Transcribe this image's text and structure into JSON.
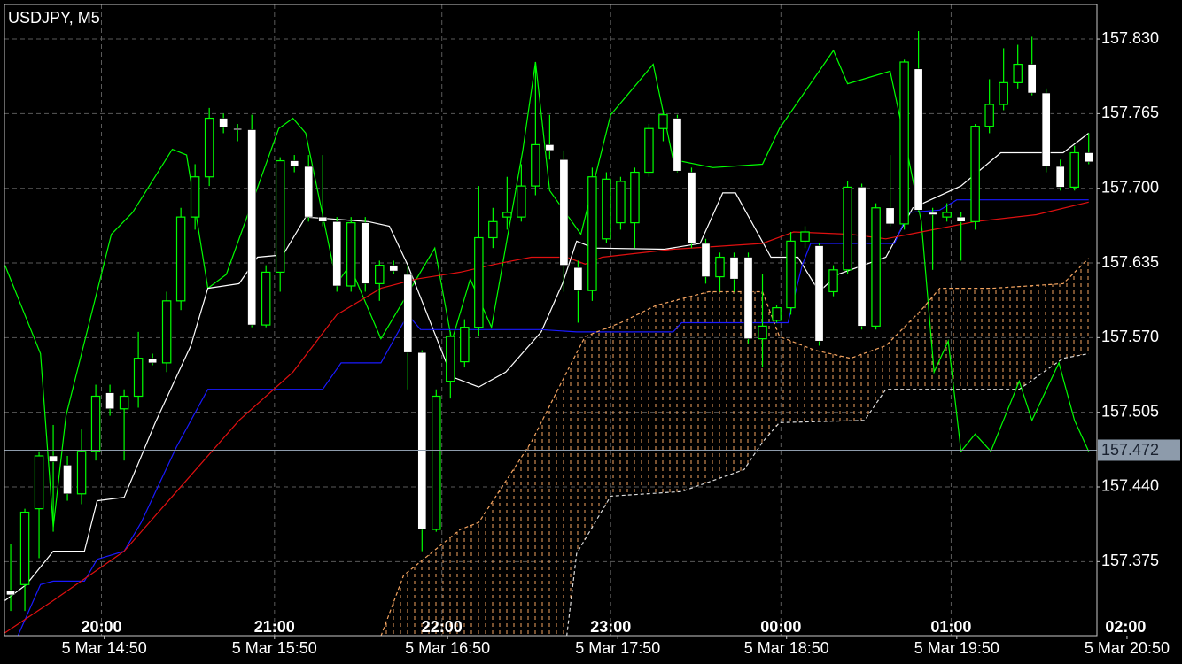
{
  "chart_data": {
    "type": "candlestick",
    "title": "USDJPY, M5",
    "open": [
      157.35,
      157.355,
      157.421,
      157.467,
      157.459,
      157.434,
      157.471,
      157.522,
      157.508,
      157.519,
      157.552,
      157.548,
      157.602,
      157.675,
      157.71,
      157.761,
      157.752,
      157.751,
      157.581,
      157.627,
      157.724,
      157.719,
      157.675,
      157.671,
      157.615,
      157.67,
      157.617,
      157.633,
      157.625,
      157.557,
      157.403,
      157.532,
      157.549,
      157.579,
      157.657,
      157.675,
      157.675,
      157.702,
      157.738,
      157.725,
      157.631,
      157.611,
      157.656,
      157.67,
      157.67,
      157.714,
      157.752,
      157.761,
      157.714,
      157.652,
      157.623,
      157.64,
      157.64,
      157.569,
      157.585,
      157.596,
      157.654,
      157.65,
      157.61,
      157.629,
      157.701,
      157.58,
      157.683,
      157.669,
      157.804,
      157.679,
      157.675,
      157.675,
      157.671,
      157.754,
      157.773,
      157.792,
      157.808,
      157.783,
      157.719,
      157.701,
      157.731
    ],
    "high": [
      157.39,
      157.421,
      157.471,
      157.494,
      157.467,
      157.49,
      157.529,
      157.529,
      157.525,
      157.575,
      157.556,
      157.61,
      157.683,
      157.721,
      157.77,
      157.765,
      157.756,
      157.764,
      157.633,
      157.727,
      157.729,
      157.729,
      157.729,
      157.675,
      157.675,
      157.675,
      157.637,
      157.637,
      157.633,
      157.559,
      157.525,
      157.575,
      157.586,
      157.702,
      157.683,
      157.71,
      157.721,
      157.81,
      157.764,
      157.733,
      157.637,
      157.718,
      157.714,
      157.71,
      157.718,
      157.756,
      157.768,
      157.764,
      157.718,
      157.656,
      157.644,
      157.644,
      157.644,
      157.625,
      157.598,
      157.662,
      157.667,
      157.652,
      157.633,
      157.706,
      157.704,
      157.687,
      157.729,
      157.812,
      157.837,
      157.683,
      157.687,
      157.679,
      157.756,
      157.795,
      157.822,
      157.825,
      157.832,
      157.787,
      157.725,
      157.737,
      157.748
    ],
    "low": [
      157.332,
      157.332,
      157.378,
      157.401,
      157.428,
      157.425,
      157.463,
      157.502,
      157.463,
      157.509,
      157.546,
      157.54,
      157.594,
      157.664,
      157.702,
      157.748,
      157.741,
      157.579,
      157.579,
      157.61,
      157.714,
      157.671,
      157.667,
      157.61,
      157.61,
      157.61,
      157.602,
      157.625,
      157.525,
      157.384,
      157.401,
      157.517,
      157.544,
      157.571,
      157.648,
      157.664,
      157.671,
      157.694,
      157.725,
      157.61,
      157.583,
      157.602,
      157.652,
      157.664,
      157.648,
      157.71,
      157.741,
      157.714,
      157.648,
      157.617,
      157.61,
      157.61,
      157.565,
      157.544,
      157.583,
      157.59,
      157.648,
      157.563,
      157.606,
      157.625,
      157.577,
      157.577,
      157.667,
      157.664,
      157.679,
      157.629,
      157.671,
      157.637,
      157.664,
      157.748,
      157.768,
      157.787,
      157.781,
      157.714,
      157.698,
      157.698,
      157.721
    ],
    "close": [
      157.346,
      157.418,
      157.467,
      157.462,
      157.434,
      157.471,
      157.519,
      157.508,
      157.519,
      157.552,
      157.548,
      157.602,
      157.675,
      157.71,
      157.761,
      157.753,
      157.751,
      157.581,
      157.627,
      157.724,
      157.719,
      157.675,
      157.671,
      157.615,
      157.67,
      157.617,
      157.633,
      157.628,
      157.557,
      157.403,
      157.519,
      157.571,
      157.579,
      157.657,
      157.671,
      157.679,
      157.702,
      157.738,
      157.733,
      157.633,
      157.611,
      157.71,
      157.708,
      157.706,
      157.714,
      157.752,
      157.764,
      157.715,
      157.652,
      157.623,
      157.64,
      157.621,
      157.569,
      157.58,
      157.596,
      157.654,
      157.662,
      157.567,
      157.629,
      157.701,
      157.58,
      157.683,
      157.669,
      157.81,
      157.681,
      157.677,
      157.679,
      157.671,
      157.754,
      157.773,
      157.792,
      157.808,
      157.783,
      157.719,
      157.701,
      157.731,
      157.723
    ],
    "bull_color": "#00ff00",
    "bear_color": "#ffffff",
    "wick_color": "#00ff00",
    "lines": [
      {
        "color": "#00ff00",
        "style": "solid",
        "x": [
          -0.4,
          2.1,
          3.0,
          3.9,
          7.1,
          8.6,
          11.4,
          12.4,
          13.9,
          15.2,
          18.9,
          19.9,
          20.8,
          23.0,
          23.9,
          26.1,
          29.9,
          31.1,
          32.4,
          33.9,
          36.1,
          37.0,
          38.0,
          40.2,
          42.3,
          45.3,
          46.7,
          49.5,
          53.0,
          54.2,
          58.0,
          59.0,
          62.0,
          63.0,
          64.2,
          65.1,
          66.1,
          67.0,
          68.0,
          69.1,
          71.1,
          72.0,
          73.9,
          75.0,
          76.0
        ],
        "values": [
          157.633,
          157.556,
          157.405,
          157.502,
          157.66,
          157.679,
          157.734,
          157.729,
          157.613,
          157.625,
          157.752,
          157.761,
          157.748,
          157.617,
          157.633,
          157.569,
          157.648,
          157.567,
          157.621,
          157.579,
          157.733,
          157.81,
          157.698,
          157.66,
          157.764,
          157.808,
          157.725,
          157.718,
          157.721,
          157.752,
          157.82,
          157.791,
          157.802,
          157.744,
          157.671,
          157.54,
          157.567,
          157.471,
          157.486,
          157.471,
          157.532,
          157.498,
          157.548,
          157.498,
          157.471
        ]
      },
      {
        "color": "#ffffff",
        "style": "solid",
        "x": [
          -0.4,
          1.1,
          3.0,
          5.2,
          6.1,
          8.0,
          10.2,
          12.7,
          13.9,
          16.1,
          17.4,
          19.2,
          20.8,
          25.2,
          26.7,
          28.0,
          31.1,
          33.0,
          34.9,
          37.4,
          38.9,
          39.9,
          41.1,
          46.1,
          48.6,
          50.2,
          51.1,
          53.6,
          55.5,
          57.0,
          58.3,
          61.7,
          63.6,
          64.5,
          67.0,
          69.8,
          74.2,
          76.0
        ],
        "values": [
          157.341,
          157.355,
          157.384,
          157.384,
          157.428,
          157.431,
          157.496,
          157.563,
          157.613,
          157.617,
          157.64,
          157.642,
          157.675,
          157.671,
          157.667,
          157.633,
          157.536,
          157.527,
          157.54,
          157.575,
          157.617,
          157.654,
          157.648,
          157.647,
          157.652,
          157.696,
          157.696,
          157.64,
          157.64,
          157.61,
          157.625,
          157.64,
          157.683,
          157.688,
          157.702,
          157.731,
          157.731,
          157.748
        ]
      },
      {
        "color": "#1a1aff",
        "style": "solid",
        "x": [
          0.5,
          2.1,
          3.0,
          5.2,
          6.1,
          8.0,
          9.2,
          11.7,
          13.9,
          22.0,
          23.3,
          26.1,
          28.0,
          28.9,
          37.4,
          39.9,
          46.7,
          47.3,
          54.8,
          55.8,
          56.4,
          62.3,
          63.3,
          65.5,
          66.7,
          76.0
        ],
        "values": [
          157.31,
          157.355,
          157.358,
          157.358,
          157.377,
          157.384,
          157.409,
          157.475,
          157.525,
          157.525,
          157.548,
          157.548,
          157.59,
          157.577,
          157.577,
          157.575,
          157.575,
          157.583,
          157.583,
          157.633,
          157.652,
          157.652,
          157.679,
          157.681,
          157.69,
          157.69
        ]
      },
      {
        "color": "#e01010",
        "style": "solid",
        "x": [
          -0.4,
          3.0,
          8.0,
          11.7,
          16.1,
          19.9,
          23.0,
          26.1,
          28.6,
          31.7,
          34.2,
          36.7,
          39.2,
          40.5,
          41.7,
          46.7,
          53.0,
          55.2,
          59.2,
          61.7,
          64.2,
          68.0,
          72.3,
          76.0
        ],
        "values": [
          157.313,
          157.341,
          157.384,
          157.436,
          157.498,
          157.54,
          157.59,
          157.613,
          157.621,
          157.627,
          157.634,
          157.64,
          157.64,
          157.634,
          157.64,
          157.647,
          157.652,
          157.662,
          157.66,
          157.656,
          157.662,
          157.671,
          157.677,
          157.688
        ]
      },
      {
        "color": "#f4a460",
        "style": "dashed",
        "x": [
          26.1,
          27.7,
          31.7,
          33.0,
          36.7,
          39.2,
          40.5,
          43.0,
          45.5,
          49.2,
          53.0,
          54.2,
          56.7,
          59.2,
          61.7,
          64.2,
          65.5,
          69.2,
          74.2,
          76.0
        ],
        "values": [
          157.31,
          157.363,
          157.403,
          157.409,
          157.479,
          157.54,
          157.571,
          157.583,
          157.598,
          157.61,
          157.61,
          157.571,
          157.559,
          157.552,
          157.563,
          157.594,
          157.613,
          157.613,
          157.617,
          157.639
        ]
      },
      {
        "color": "#dddddd",
        "style": "dashed",
        "x": [
          39.2,
          39.9,
          42.3,
          47.3,
          51.7,
          53.0,
          54.2,
          60.2,
          61.7,
          71.1,
          74.2,
          76.0
        ],
        "values": [
          157.31,
          157.382,
          157.432,
          157.436,
          157.455,
          157.479,
          157.496,
          157.498,
          157.525,
          157.525,
          157.552,
          157.556
        ]
      }
    ],
    "cloud_color": "#f4a460",
    "xlim": [
      -0.44,
      76.58
    ],
    "ylim": [
      157.3105,
      157.8601
    ],
    "yticks": [
      {
        "value": 157.83,
        "label": "157.830"
      },
      157.765,
      {
        "value": 157.7,
        "label": "157.700"
      },
      157.635,
      {
        "value": 157.57,
        "label": "157.570"
      },
      157.505,
      {
        "value": 157.44,
        "label": "157.440"
      },
      157.375
    ],
    "xticks": [
      {
        "value": 6.4,
        "label": "20:00"
      },
      {
        "value": 18.6,
        "label": "21:00"
      },
      {
        "value": 30.4,
        "label": "22:00"
      },
      {
        "value": 42.3,
        "label": "23:00"
      },
      {
        "value": 54.3,
        "label": "00:00"
      },
      {
        "value": 66.3,
        "label": "01:00"
      },
      {
        "value": 78.6,
        "label": "02:00"
      }
    ],
    "date_ticks": [
      {
        "value": 6.6,
        "label": "5 Mar 14:50"
      },
      {
        "value": 18.6,
        "label": "5 Mar 15:50"
      },
      {
        "value": 30.8,
        "label": "5 Mar 16:50"
      },
      {
        "value": 42.8,
        "label": "5 Mar 17:50"
      },
      {
        "value": 54.7,
        "label": "5 Mar 18:50"
      },
      {
        "value": 66.7,
        "label": "5 Mar 19:50"
      },
      {
        "value": 78.7,
        "label": "5 Mar 20:50"
      }
    ],
    "grid": true,
    "current_price": 157.472
  }
}
